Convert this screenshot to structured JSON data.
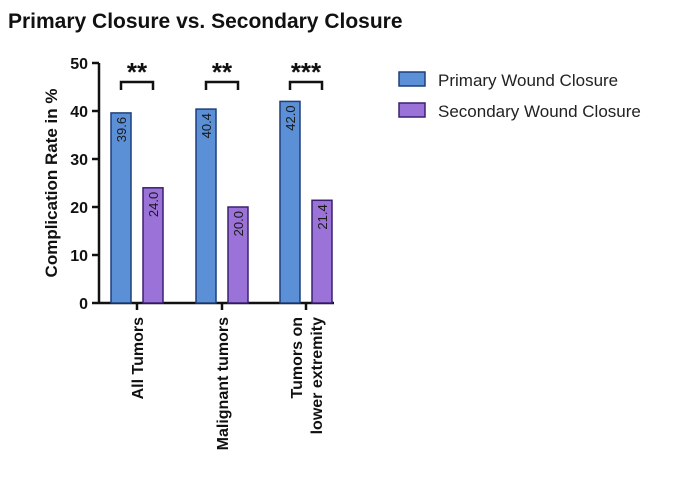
{
  "chart_data": {
    "type": "bar",
    "title": "Primary Closure vs. Secondary Closure",
    "ylabel": "Complication Rate in %",
    "xlabel": "",
    "ylim": [
      0,
      50
    ],
    "yticks": [
      0,
      10,
      20,
      30,
      40,
      50
    ],
    "categories": [
      [
        "All Tumors"
      ],
      [
        "Malignant tumors"
      ],
      [
        "Tumors on",
        "lower extremity"
      ]
    ],
    "series": [
      {
        "name": "Primary Wound Closure",
        "values": [
          39.6,
          40.4,
          42.0
        ],
        "labels": [
          "39.6",
          "40.4",
          "42.0"
        ],
        "color": "#5b8fd6",
        "stroke": "#1f3f7a"
      },
      {
        "name": "Secondary Wound Closure",
        "values": [
          24.0,
          20.0,
          21.4
        ],
        "labels": [
          "24.0",
          "20.0",
          "21.4"
        ],
        "color": "#9a72d8",
        "stroke": "#3a2070"
      }
    ],
    "significance": [
      "**",
      "**",
      "***"
    ],
    "legend_position": "top-right",
    "grid": false
  }
}
